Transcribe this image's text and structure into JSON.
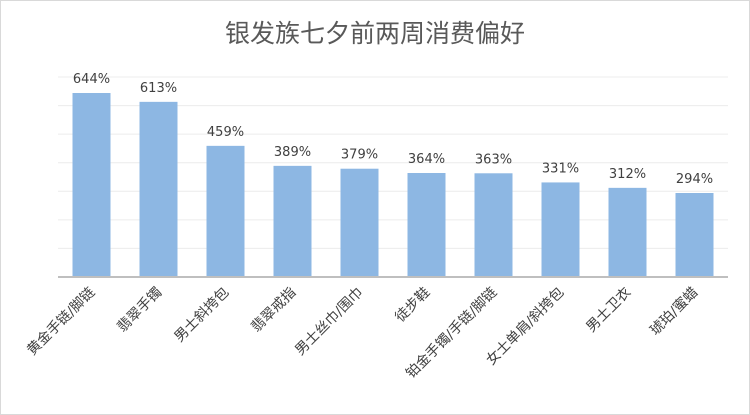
{
  "chart_data": {
    "type": "bar",
    "title": "银发族七夕前两周消费偏好",
    "categories": [
      "黄金手链/脚链",
      "翡翠手镯",
      "男士斜挎包",
      "翡翠戒指",
      "男士丝巾/围巾",
      "徒步鞋",
      "铂金手镯/手链/脚链",
      "女士单肩/斜挎包",
      "男士卫衣",
      "琥珀/蜜蜡"
    ],
    "values": [
      644,
      613,
      459,
      389,
      379,
      364,
      363,
      331,
      312,
      294
    ],
    "value_labels": [
      "644%",
      "613%",
      "459%",
      "389%",
      "379%",
      "364%",
      "363%",
      "331%",
      "312%",
      "294%"
    ],
    "unit": "%",
    "xlabel": "",
    "ylabel": "",
    "ylim": [
      0,
      700
    ],
    "grid": true,
    "bar_color": "#8db7e3"
  }
}
